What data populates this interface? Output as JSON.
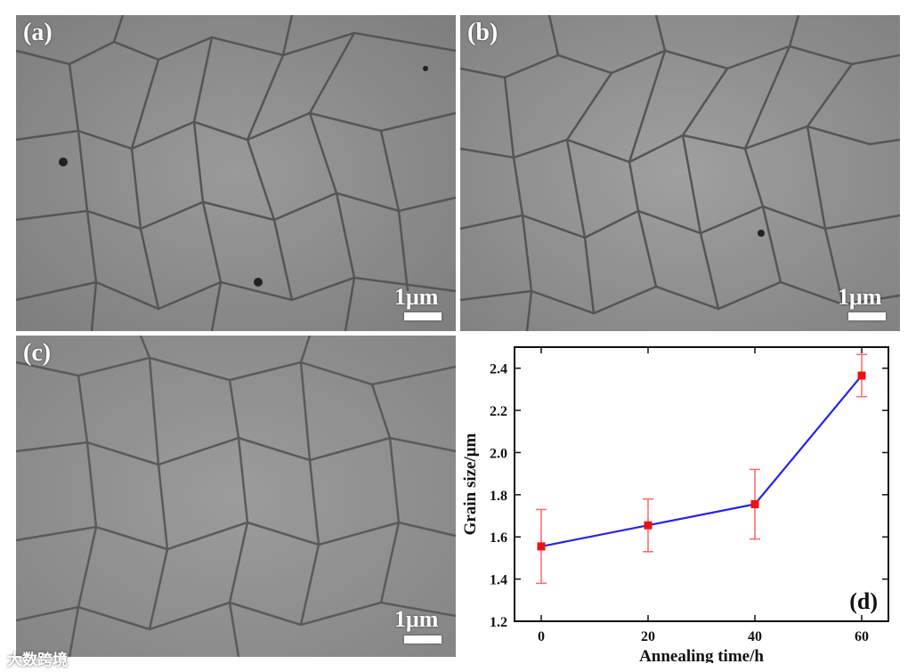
{
  "panels": [
    {
      "label": "(a)",
      "scale_label": "1μm"
    },
    {
      "label": "(b)",
      "scale_label": "1μm"
    },
    {
      "label": "(c)",
      "scale_label": "1μm"
    }
  ],
  "watermark": "大数跨境",
  "chart_data": {
    "type": "line",
    "panel_label": "(d)",
    "xlabel": "Annealing time/h",
    "ylabel": "Grain size/μm",
    "x": [
      0,
      20,
      40,
      60
    ],
    "y": [
      1.555,
      1.655,
      1.755,
      2.365
    ],
    "error": [
      0.175,
      0.125,
      0.165,
      0.1
    ],
    "xlim": [
      -5,
      65
    ],
    "ylim": [
      1.2,
      2.5
    ],
    "x_ticks": [
      0,
      20,
      40,
      60
    ],
    "y_ticks": [
      1.2,
      1.4,
      1.6,
      1.8,
      2.0,
      2.2,
      2.4
    ],
    "line_color": "#2222ee",
    "marker_color": "#ee1111",
    "error_color": "#ff6666",
    "grid": false
  }
}
